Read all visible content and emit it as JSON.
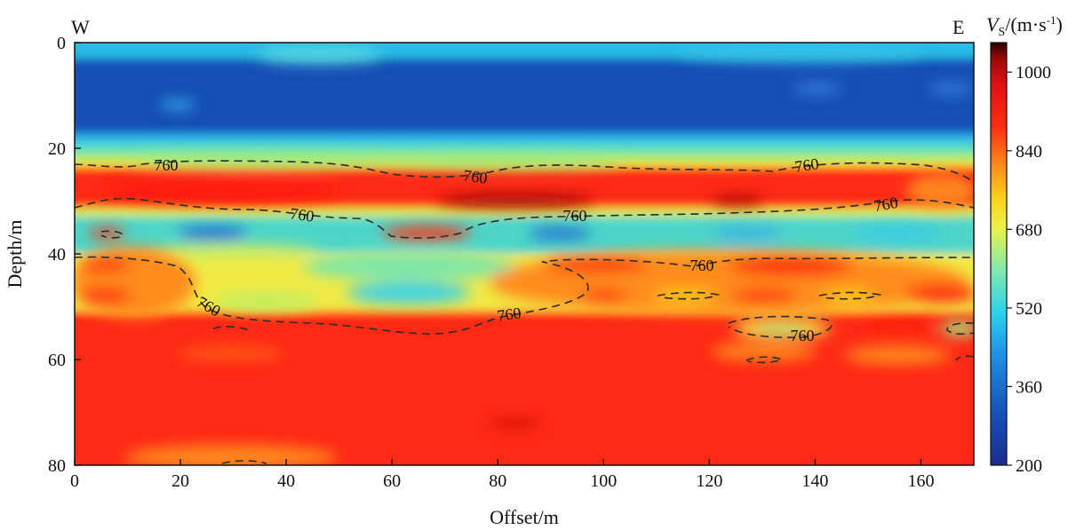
{
  "chart_data": {
    "type": "heatmap",
    "title": "",
    "xlabel": "Offset/m",
    "ylabel": "Depth/m",
    "xlim": [
      0,
      170
    ],
    "ylim": [
      80,
      0
    ],
    "x_ticks": [
      "0",
      "20",
      "40",
      "60",
      "80",
      "100",
      "120",
      "140",
      "160"
    ],
    "y_ticks": [
      "0",
      "20",
      "40",
      "60",
      "80"
    ],
    "direction_left": "W",
    "direction_right": "E",
    "colorbar": {
      "title_var": "V",
      "title_sub": "S",
      "title_unit": "/(m·s",
      "title_exp": "-1",
      "title_close": ")",
      "range": [
        200,
        1060
      ],
      "ticks": [
        "1000",
        "840",
        "680",
        "520",
        "360",
        "200"
      ],
      "colormap": [
        "#1c2b8f",
        "#1650b8",
        "#1e90e6",
        "#2ad2ee",
        "#7fe8b0",
        "#e8f24a",
        "#ffd21a",
        "#ff8a1a",
        "#ff2d0f",
        "#e01010",
        "#a00808",
        "#2a0000"
      ]
    },
    "contour_level": 760,
    "contour_label": "760",
    "layers": [
      {
        "depth_top": 0,
        "depth_bottom": 3,
        "vs": 480
      },
      {
        "depth_top": 3,
        "depth_bottom": 17,
        "vs": 300
      },
      {
        "depth_top": 17,
        "depth_bottom": 22,
        "vs": 540
      },
      {
        "depth_top": 22,
        "depth_bottom": 31,
        "vs": 900
      },
      {
        "depth_top": 31,
        "depth_bottom": 40,
        "vs": 580
      },
      {
        "depth_top": 40,
        "depth_bottom": 55,
        "vs": 720
      },
      {
        "depth_top": 55,
        "depth_bottom": 80,
        "vs": 900
      }
    ]
  }
}
